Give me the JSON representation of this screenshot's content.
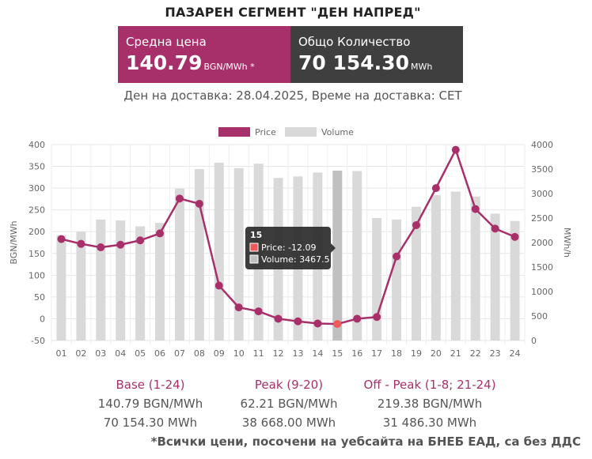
{
  "header": {
    "title": "ПАЗАРЕН СЕГМЕНТ \"ДЕН НАПРЕД\"",
    "price_label": "Средна цена",
    "price_value": "140.79",
    "price_unit": "BGN/MWh *",
    "volume_label": "Общо Количество",
    "volume_value": "70 154.30",
    "volume_unit": "MWh",
    "delivery_text": "Ден на доставка: 28.04.2025, Време на доставка: CET"
  },
  "colors": {
    "price_series": "#a8306a",
    "volume_bar": "#d9d9d9",
    "volume_bar_highlight": "#c0c0c0",
    "price_point_highlight": "#f05a5a",
    "tooltip_bg": "#2b2b2b"
  },
  "chart_data": {
    "type": "bar",
    "legend_position": "top",
    "grid": true,
    "categories": [
      "01",
      "02",
      "03",
      "04",
      "05",
      "06",
      "07",
      "08",
      "09",
      "10",
      "11",
      "12",
      "13",
      "14",
      "15",
      "16",
      "17",
      "18",
      "19",
      "20",
      "21",
      "22",
      "23",
      "24"
    ],
    "series": [
      {
        "name": "Price",
        "type": "line",
        "axis": "left",
        "values": [
          183,
          172,
          164,
          170,
          180,
          196,
          276,
          264,
          76,
          26,
          17,
          0,
          -6,
          -11,
          -12.09,
          0,
          4,
          143,
          215,
          300,
          388,
          252,
          207,
          188
        ]
      },
      {
        "name": "Volume",
        "type": "bar",
        "axis": "right",
        "values": [
          2150,
          2220,
          2470,
          2450,
          2330,
          2400,
          3100,
          3500,
          3630,
          3520,
          3610,
          3320,
          3350,
          3430,
          3467.5,
          3460,
          2500,
          2470,
          2730,
          2970,
          3040,
          2940,
          2590,
          2440
        ]
      }
    ],
    "y_left": {
      "label": "BGN/MWh",
      "min": -50,
      "max": 400,
      "ticks": [
        "-50",
        "0",
        "50",
        "100",
        "150",
        "200",
        "250",
        "300",
        "350",
        "400"
      ]
    },
    "y_right": {
      "label": "MWh/h",
      "min": 0,
      "max": 4000,
      "ticks": [
        "0",
        "500",
        "1000",
        "1500",
        "2000",
        "2500",
        "3000",
        "3500",
        "4000"
      ]
    },
    "highlight_index": 14,
    "tooltip": {
      "title": "15",
      "price_text": "Price: -12.09",
      "volume_text": "Volume: 3467.5"
    }
  },
  "summary": [
    {
      "title": "Base (1-24)",
      "price": "140.79 BGN/MWh",
      "volume": "70 154.30 MWh"
    },
    {
      "title": "Peak (9-20)",
      "price": "62.21 BGN/MWh",
      "volume": "38 668.00 MWh"
    },
    {
      "title": "Off - Peak (1-8; 21-24)",
      "price": "219.38 BGN/MWh",
      "volume": "31 486.30 MWh"
    }
  ],
  "footnote": "*Всички цени, посочени на уебсайта на БНЕБ ЕАД, са без ДДС"
}
